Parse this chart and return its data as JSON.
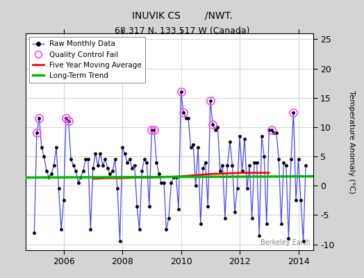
{
  "title": "INUVIK CS        /NWT.",
  "subtitle": "68.317 N, 133.517 W (Canada)",
  "ylabel": "Temperature Anomaly (°C)",
  "watermark": "Berkeley Earth",
  "ylim": [
    -11,
    26
  ],
  "yticks": [
    -10,
    -5,
    0,
    5,
    10,
    15,
    20,
    25
  ],
  "xlim": [
    2004.7,
    2014.5
  ],
  "xticks": [
    2006,
    2008,
    2010,
    2012,
    2014
  ],
  "background_color": "#d4d4d4",
  "plot_bg_color": "#ffffff",
  "raw_color": "#4444ff",
  "qc_color": "#ff44ff",
  "moving_avg_color": "#ff0000",
  "trend_color": "#00bb00",
  "raw_data": [
    [
      2005.0,
      -8.0
    ],
    [
      2005.083,
      9.0
    ],
    [
      2005.167,
      11.5
    ],
    [
      2005.25,
      6.5
    ],
    [
      2005.333,
      5.0
    ],
    [
      2005.417,
      2.5
    ],
    [
      2005.5,
      1.5
    ],
    [
      2005.583,
      2.0
    ],
    [
      2005.667,
      3.5
    ],
    [
      2005.75,
      6.5
    ],
    [
      2005.833,
      -0.5
    ],
    [
      2005.917,
      -7.5
    ],
    [
      2006.0,
      -2.5
    ],
    [
      2006.083,
      11.5
    ],
    [
      2006.167,
      11.0
    ],
    [
      2006.25,
      4.5
    ],
    [
      2006.333,
      3.5
    ],
    [
      2006.417,
      2.5
    ],
    [
      2006.5,
      0.5
    ],
    [
      2006.583,
      1.5
    ],
    [
      2006.667,
      2.5
    ],
    [
      2006.75,
      4.5
    ],
    [
      2006.833,
      4.5
    ],
    [
      2006.917,
      -7.5
    ],
    [
      2007.0,
      3.0
    ],
    [
      2007.083,
      5.5
    ],
    [
      2007.167,
      3.5
    ],
    [
      2007.25,
      5.5
    ],
    [
      2007.333,
      3.5
    ],
    [
      2007.417,
      4.5
    ],
    [
      2007.5,
      3.0
    ],
    [
      2007.583,
      2.0
    ],
    [
      2007.667,
      2.5
    ],
    [
      2007.75,
      4.5
    ],
    [
      2007.833,
      -0.5
    ],
    [
      2007.917,
      -9.5
    ],
    [
      2008.0,
      6.5
    ],
    [
      2008.083,
      5.5
    ],
    [
      2008.167,
      4.0
    ],
    [
      2008.25,
      4.5
    ],
    [
      2008.333,
      3.0
    ],
    [
      2008.417,
      3.5
    ],
    [
      2008.5,
      -3.5
    ],
    [
      2008.583,
      -7.5
    ],
    [
      2008.667,
      2.5
    ],
    [
      2008.75,
      4.5
    ],
    [
      2008.833,
      4.0
    ],
    [
      2008.917,
      -3.5
    ],
    [
      2009.0,
      9.5
    ],
    [
      2009.083,
      9.5
    ],
    [
      2009.167,
      4.0
    ],
    [
      2009.25,
      2.0
    ],
    [
      2009.333,
      0.5
    ],
    [
      2009.417,
      0.5
    ],
    [
      2009.5,
      -7.5
    ],
    [
      2009.583,
      -5.5
    ],
    [
      2009.667,
      0.5
    ],
    [
      2009.75,
      1.5
    ],
    [
      2009.833,
      1.5
    ],
    [
      2009.917,
      -4.0
    ],
    [
      2010.0,
      16.0
    ],
    [
      2010.083,
      12.5
    ],
    [
      2010.167,
      11.5
    ],
    [
      2010.25,
      11.5
    ],
    [
      2010.333,
      6.5
    ],
    [
      2010.417,
      7.0
    ],
    [
      2010.5,
      0.0
    ],
    [
      2010.583,
      6.5
    ],
    [
      2010.667,
      -6.5
    ],
    [
      2010.75,
      3.0
    ],
    [
      2010.833,
      4.0
    ],
    [
      2010.917,
      -3.5
    ],
    [
      2011.0,
      14.5
    ],
    [
      2011.083,
      10.5
    ],
    [
      2011.167,
      9.5
    ],
    [
      2011.25,
      10.0
    ],
    [
      2011.333,
      2.5
    ],
    [
      2011.417,
      3.5
    ],
    [
      2011.5,
      -5.5
    ],
    [
      2011.583,
      3.5
    ],
    [
      2011.667,
      7.5
    ],
    [
      2011.75,
      3.5
    ],
    [
      2011.833,
      -4.5
    ],
    [
      2011.917,
      -0.5
    ],
    [
      2012.0,
      8.5
    ],
    [
      2012.083,
      2.5
    ],
    [
      2012.167,
      8.0
    ],
    [
      2012.25,
      -0.5
    ],
    [
      2012.333,
      3.5
    ],
    [
      2012.417,
      -5.5
    ],
    [
      2012.5,
      4.0
    ],
    [
      2012.583,
      4.0
    ],
    [
      2012.667,
      -8.5
    ],
    [
      2012.75,
      8.5
    ],
    [
      2012.833,
      5.0
    ],
    [
      2012.917,
      -6.5
    ],
    [
      2013.0,
      9.5
    ],
    [
      2013.083,
      9.5
    ],
    [
      2013.167,
      9.0
    ],
    [
      2013.25,
      9.0
    ],
    [
      2013.333,
      4.5
    ],
    [
      2013.417,
      -6.5
    ],
    [
      2013.5,
      4.0
    ],
    [
      2013.583,
      3.5
    ],
    [
      2013.667,
      -9.0
    ],
    [
      2013.75,
      4.5
    ],
    [
      2013.833,
      12.5
    ],
    [
      2013.917,
      -2.5
    ],
    [
      2014.0,
      4.5
    ],
    [
      2014.083,
      -2.5
    ],
    [
      2014.167,
      -9.5
    ],
    [
      2014.25,
      3.5
    ]
  ],
  "qc_fail_points": [
    [
      2005.083,
      9.0
    ],
    [
      2005.167,
      11.5
    ],
    [
      2006.083,
      11.5
    ],
    [
      2006.167,
      11.0
    ],
    [
      2009.0,
      9.5
    ],
    [
      2009.083,
      9.5
    ],
    [
      2010.0,
      16.0
    ],
    [
      2010.083,
      12.5
    ],
    [
      2011.0,
      14.5
    ],
    [
      2011.083,
      10.5
    ],
    [
      2013.083,
      9.5
    ],
    [
      2013.833,
      12.5
    ]
  ],
  "moving_avg": [
    [
      2007.0,
      1.2
    ],
    [
      2007.5,
      1.3
    ],
    [
      2008.0,
      1.3
    ],
    [
      2008.5,
      1.4
    ],
    [
      2009.0,
      1.4
    ],
    [
      2009.5,
      1.5
    ],
    [
      2010.0,
      1.6
    ],
    [
      2010.5,
      1.8
    ],
    [
      2011.0,
      2.0
    ],
    [
      2011.5,
      2.1
    ],
    [
      2012.0,
      2.2
    ],
    [
      2012.5,
      2.2
    ],
    [
      2013.0,
      2.2
    ]
  ],
  "trend_x": [
    2004.7,
    2014.5
  ],
  "trend_y": [
    1.4,
    1.6
  ]
}
